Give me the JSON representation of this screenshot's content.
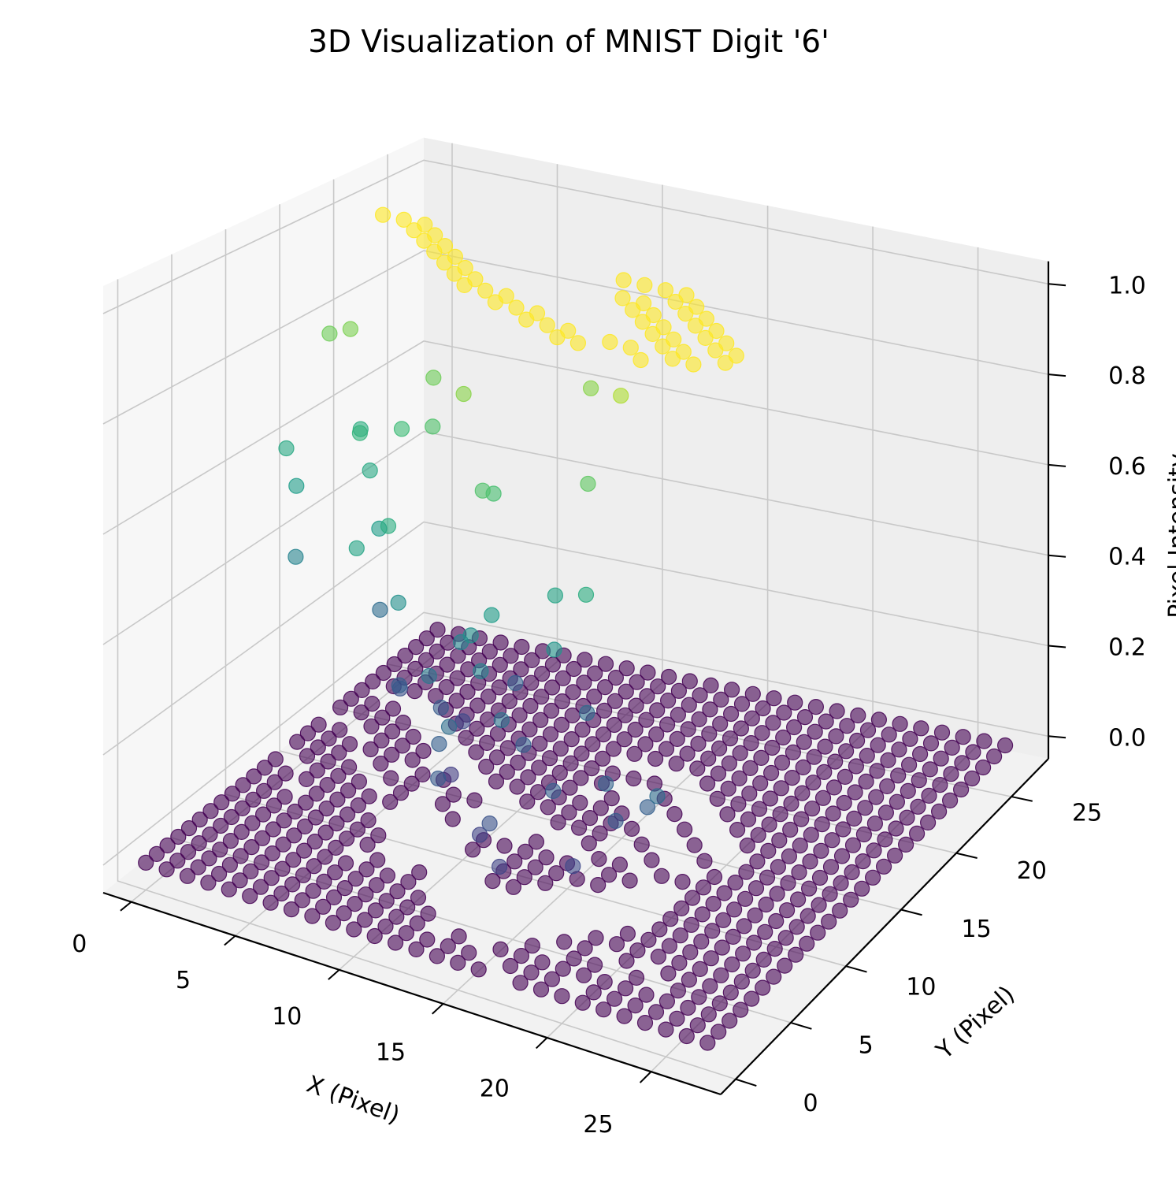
{
  "chart_data": {
    "type": "scatter",
    "projection": "3d",
    "title": "3D Visualization of MNIST Digit '6'",
    "xlabel": "X (Pixel)",
    "ylabel": "Y (Pixel)",
    "zlabel": "Pixel Intensity",
    "xlim": [
      -1.35,
      28.35
    ],
    "ylim": [
      -1.35,
      28.35
    ],
    "zlim": [
      -0.05,
      1.05
    ],
    "x_ticks": [
      "0",
      "5",
      "10",
      "15",
      "20",
      "25"
    ],
    "y_ticks": [
      "0",
      "5",
      "10",
      "15",
      "20",
      "25"
    ],
    "z_ticks": [
      "0.0",
      "0.2",
      "0.4",
      "0.6",
      "0.8",
      "1.0"
    ],
    "grid": true,
    "colormap": "viridis",
    "marker_alpha": 0.6,
    "grid_size": [
      28,
      28
    ],
    "description": "Every pixel (x, y) of a 28x28 MNIST digit '6' plotted at height = pixel intensity; zero-intensity pixels form the flat base plane.",
    "nonzero_pixels": [
      {
        "x": 1,
        "y": 20,
        "z": 1.0
      },
      {
        "x": 2,
        "y": 20,
        "z": 1.0
      },
      {
        "x": 3,
        "y": 20,
        "z": 1.0
      },
      {
        "x": 3,
        "y": 19,
        "z": 1.0
      },
      {
        "x": 4,
        "y": 19,
        "z": 1.0
      },
      {
        "x": 4,
        "y": 18,
        "z": 1.0
      },
      {
        "x": 5,
        "y": 18,
        "z": 1.0
      },
      {
        "x": 5,
        "y": 17,
        "z": 1.0
      },
      {
        "x": 6,
        "y": 17,
        "z": 1.0
      },
      {
        "x": 6,
        "y": 16,
        "z": 1.0
      },
      {
        "x": 7,
        "y": 16,
        "z": 1.0
      },
      {
        "x": 7,
        "y": 15,
        "z": 1.0
      },
      {
        "x": 8,
        "y": 15,
        "z": 1.0
      },
      {
        "x": 8,
        "y": 14,
        "z": 1.0
      },
      {
        "x": 9,
        "y": 14,
        "z": 1.0
      },
      {
        "x": 10,
        "y": 14,
        "z": 1.0
      },
      {
        "x": 10,
        "y": 13,
        "z": 1.0
      },
      {
        "x": 11,
        "y": 13,
        "z": 1.0
      },
      {
        "x": 12,
        "y": 13,
        "z": 1.0
      },
      {
        "x": 12,
        "y": 12,
        "z": 1.0
      },
      {
        "x": 13,
        "y": 12,
        "z": 1.0
      },
      {
        "x": 14,
        "y": 12,
        "z": 1.0
      },
      {
        "x": 14,
        "y": 11,
        "z": 1.0
      },
      {
        "x": 15,
        "y": 11,
        "z": 1.0
      },
      {
        "x": 13,
        "y": 19,
        "z": 1.0
      },
      {
        "x": 14,
        "y": 19,
        "z": 1.0
      },
      {
        "x": 15,
        "y": 19,
        "z": 1.0
      },
      {
        "x": 16,
        "y": 19,
        "z": 1.0
      },
      {
        "x": 16,
        "y": 18,
        "z": 1.0
      },
      {
        "x": 17,
        "y": 18,
        "z": 1.0
      },
      {
        "x": 17,
        "y": 17,
        "z": 1.0
      },
      {
        "x": 18,
        "y": 17,
        "z": 1.0
      },
      {
        "x": 18,
        "y": 16,
        "z": 1.0
      },
      {
        "x": 19,
        "y": 16,
        "z": 1.0
      },
      {
        "x": 19,
        "y": 15,
        "z": 1.0
      },
      {
        "x": 20,
        "y": 15,
        "z": 1.0
      },
      {
        "x": 20,
        "y": 14,
        "z": 1.0
      },
      {
        "x": 21,
        "y": 14,
        "z": 1.0
      },
      {
        "x": 21,
        "y": 13,
        "z": 1.0
      },
      {
        "x": 14,
        "y": 17,
        "z": 1.0
      },
      {
        "x": 15,
        "y": 17,
        "z": 1.0
      },
      {
        "x": 15,
        "y": 16,
        "z": 1.0
      },
      {
        "x": 16,
        "y": 16,
        "z": 1.0
      },
      {
        "x": 16,
        "y": 15,
        "z": 1.0
      },
      {
        "x": 17,
        "y": 15,
        "z": 1.0
      },
      {
        "x": 17,
        "y": 14,
        "z": 1.0
      },
      {
        "x": 18,
        "y": 14,
        "z": 1.0
      },
      {
        "x": 18,
        "y": 13,
        "z": 1.0
      },
      {
        "x": 19,
        "y": 13,
        "z": 1.0
      },
      {
        "x": 19,
        "y": 12,
        "z": 1.0
      },
      {
        "x": 20,
        "y": 12,
        "z": 1.0
      },
      {
        "x": 17,
        "y": 12,
        "z": 1.0
      },
      {
        "x": 18,
        "y": 11,
        "z": 1.0
      },
      {
        "x": 16,
        "y": 12,
        "z": 1.0
      },
      {
        "x": 13,
        "y": 16,
        "z": 0.82
      },
      {
        "x": 16,
        "y": 13,
        "z": 0.88
      },
      {
        "x": 0,
        "y": 17,
        "z": 0.78
      },
      {
        "x": 1,
        "y": 17,
        "z": 0.8
      },
      {
        "x": 2,
        "y": 16,
        "z": 0.62
      },
      {
        "x": 0,
        "y": 13,
        "z": 0.6
      },
      {
        "x": 1,
        "y": 12,
        "z": 0.55
      },
      {
        "x": 3,
        "y": 14,
        "z": 0.65
      },
      {
        "x": 4,
        "y": 13,
        "z": 0.6
      },
      {
        "x": 5,
        "y": 14,
        "z": 0.68
      },
      {
        "x": 6,
        "y": 15,
        "z": 0.78
      },
      {
        "x": 7,
        "y": 13,
        "z": 0.72
      },
      {
        "x": 9,
        "y": 12,
        "z": 0.82
      },
      {
        "x": 2,
        "y": 10,
        "z": 0.45
      },
      {
        "x": 6,
        "y": 10,
        "z": 0.55
      },
      {
        "x": 12,
        "y": 9,
        "z": 0.7
      },
      {
        "x": 12,
        "y": 8,
        "z": 0.72
      },
      {
        "x": 16,
        "y": 10,
        "z": 0.75
      },
      {
        "x": 8,
        "y": 7,
        "z": 0.62
      },
      {
        "x": 7,
        "y": 6,
        "z": 0.58
      },
      {
        "x": 9,
        "y": 6,
        "z": 0.5
      },
      {
        "x": 12,
        "y": 6,
        "z": 0.46
      },
      {
        "x": 11,
        "y": 5,
        "z": 0.4
      },
      {
        "x": 13,
        "y": 5,
        "z": 0.5
      },
      {
        "x": 14,
        "y": 5,
        "z": 0.55
      },
      {
        "x": 14,
        "y": 4,
        "z": 0.46
      },
      {
        "x": 13,
        "y": 3,
        "z": 0.36
      },
      {
        "x": 16,
        "y": 7,
        "z": 0.58
      },
      {
        "x": 17,
        "y": 5,
        "z": 0.52
      },
      {
        "x": 18,
        "y": 6,
        "z": 0.62
      },
      {
        "x": 15,
        "y": 4,
        "z": 0.38
      },
      {
        "x": 5,
        "y": 12,
        "z": 0.35
      },
      {
        "x": 7,
        "y": 10,
        "z": 0.25
      },
      {
        "x": 8,
        "y": 8,
        "z": 0.3
      },
      {
        "x": 10,
        "y": 8,
        "z": 0.28
      },
      {
        "x": 11,
        "y": 7,
        "z": 0.18
      },
      {
        "x": 12,
        "y": 4,
        "z": 0.3
      },
      {
        "x": 13,
        "y": 2,
        "z": 0.28
      },
      {
        "x": 15,
        "y": 2,
        "z": 0.2
      },
      {
        "x": 16,
        "y": 1,
        "z": 0.25
      },
      {
        "x": 17,
        "y": 0,
        "z": 0.2
      },
      {
        "x": 18,
        "y": 3,
        "z": 0.3
      },
      {
        "x": 20,
        "y": 4,
        "z": 0.32
      },
      {
        "x": 21,
        "y": 3,
        "z": 0.28
      },
      {
        "x": 22,
        "y": 4,
        "z": 0.3
      },
      {
        "x": 23,
        "y": 3,
        "z": 0.35
      },
      {
        "x": 20,
        "y": 1,
        "z": 0.22
      },
      {
        "x": 17,
        "y": 8,
        "z": 0.35
      },
      {
        "x": 15,
        "y": 6,
        "z": 0.3
      },
      {
        "x": 12,
        "y": 11,
        "z": 0.3
      },
      {
        "x": 10,
        "y": 10,
        "z": 0.22
      }
    ],
    "cutout_pixels": [
      {
        "x": 7,
        "y": 9
      },
      {
        "x": 7,
        "y": 10
      },
      {
        "x": 7,
        "y": 11
      },
      {
        "x": 7,
        "y": 12
      },
      {
        "x": 8,
        "y": 8
      },
      {
        "x": 8,
        "y": 9
      },
      {
        "x": 8,
        "y": 10
      },
      {
        "x": 8,
        "y": 11
      },
      {
        "x": 9,
        "y": 7
      },
      {
        "x": 9,
        "y": 8
      },
      {
        "x": 9,
        "y": 9
      },
      {
        "x": 9,
        "y": 10
      },
      {
        "x": 10,
        "y": 7
      },
      {
        "x": 10,
        "y": 8
      },
      {
        "x": 10,
        "y": 9
      },
      {
        "x": 11,
        "y": 6
      },
      {
        "x": 11,
        "y": 7
      },
      {
        "x": 11,
        "y": 8
      },
      {
        "x": 12,
        "y": 5
      },
      {
        "x": 12,
        "y": 6
      },
      {
        "x": 12,
        "y": 7
      },
      {
        "x": 13,
        "y": 4
      },
      {
        "x": 13,
        "y": 5
      },
      {
        "x": 13,
        "y": 6
      },
      {
        "x": 14,
        "y": 3
      },
      {
        "x": 14,
        "y": 4
      },
      {
        "x": 14,
        "y": 5
      },
      {
        "x": 14,
        "y": 6
      },
      {
        "x": 15,
        "y": 3
      },
      {
        "x": 15,
        "y": 4
      },
      {
        "x": 15,
        "y": 5
      },
      {
        "x": 15,
        "y": 6
      },
      {
        "x": 15,
        "y": 7
      },
      {
        "x": 16,
        "y": 3
      },
      {
        "x": 16,
        "y": 4
      },
      {
        "x": 16,
        "y": 5
      },
      {
        "x": 16,
        "y": 6
      },
      {
        "x": 16,
        "y": 7
      },
      {
        "x": 16,
        "y": 8
      },
      {
        "x": 17,
        "y": 4
      },
      {
        "x": 17,
        "y": 5
      },
      {
        "x": 17,
        "y": 6
      },
      {
        "x": 17,
        "y": 7
      },
      {
        "x": 17,
        "y": 8
      },
      {
        "x": 18,
        "y": 5
      },
      {
        "x": 18,
        "y": 6
      },
      {
        "x": 18,
        "y": 7
      },
      {
        "x": 18,
        "y": 8
      },
      {
        "x": 18,
        "y": 9
      },
      {
        "x": 19,
        "y": 6
      },
      {
        "x": 19,
        "y": 7
      },
      {
        "x": 19,
        "y": 8
      },
      {
        "x": 19,
        "y": 9
      },
      {
        "x": 19,
        "y": 10
      },
      {
        "x": 20,
        "y": 7
      },
      {
        "x": 20,
        "y": 8
      },
      {
        "x": 20,
        "y": 9
      },
      {
        "x": 20,
        "y": 10
      },
      {
        "x": 11,
        "y": 11
      },
      {
        "x": 11,
        "y": 12
      },
      {
        "x": 10,
        "y": 11
      },
      {
        "x": 10,
        "y": 12
      },
      {
        "x": 9,
        "y": 12
      }
    ]
  }
}
